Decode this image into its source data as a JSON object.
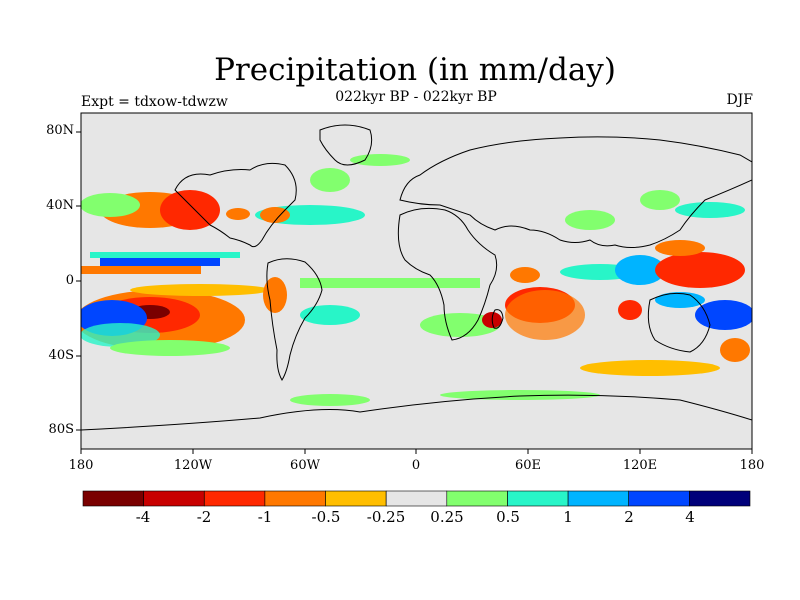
{
  "title": "Precipitation (in mm/day)",
  "subtitle": "022kyr BP - 022kyr BP",
  "experiment_label": "Expt = tdxow-tdwzw",
  "season": "DJF",
  "map": {
    "projection": "cylindrical equidistant",
    "lon_range": [
      -180,
      180
    ],
    "lat_range": [
      -90,
      90
    ],
    "lat_tick_labels": [
      "80N",
      "40N",
      "0",
      "40S",
      "80S"
    ],
    "lon_tick_labels": [
      "180",
      "120W",
      "60W",
      "0",
      "60E",
      "120E",
      "180"
    ],
    "background_color": "#e6e6e6"
  },
  "colorbar": {
    "colors": [
      "#7a0000",
      "#c80000",
      "#ff2800",
      "#ff7800",
      "#ffbe00",
      "#e6e6e6",
      "#82ff6e",
      "#28f5c8",
      "#00b4ff",
      "#0046ff",
      "#00007a"
    ],
    "labels": [
      "-4",
      "-2",
      "-1",
      "-0.5",
      "-0.25",
      "0.25",
      "0.5",
      "1",
      "2",
      "4"
    ]
  }
}
